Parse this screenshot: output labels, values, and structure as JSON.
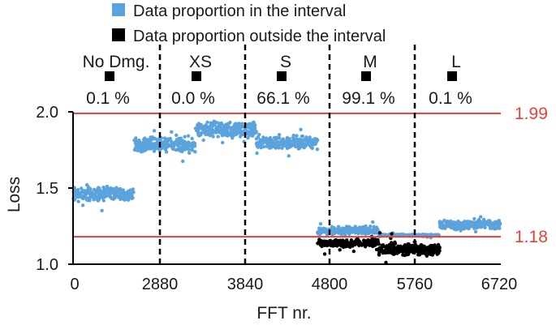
{
  "chart_data": {
    "type": "scatter",
    "title": "",
    "xlabel": "FFT nr.",
    "ylabel": "Loss",
    "xlim": [
      0,
      6720
    ],
    "ylim": [
      1.0,
      2.0
    ],
    "xticks": [
      0,
      2880,
      3840,
      4800,
      5760,
      6720
    ],
    "yticks": [
      1.0,
      1.5,
      2.0
    ],
    "legend": {
      "placement": "top-center",
      "entries": [
        {
          "name": "Data proportion in the interval",
          "color": "#5ba3dc"
        },
        {
          "name": "Data proportion outside the interval",
          "color": "#000000"
        }
      ]
    },
    "reference_lines": [
      {
        "y": 1.99,
        "label": "1.99",
        "color": "#e8413b"
      },
      {
        "y": 1.18,
        "label": "1.18",
        "color": "#e8413b"
      }
    ],
    "regions": [
      {
        "label": "No Dmg.",
        "x_start": 0,
        "x_end": 2880,
        "percent_outside": "0.1 %"
      },
      {
        "label": "XS",
        "x_start": 2880,
        "x_end": 3840,
        "percent_outside": "0.0 %"
      },
      {
        "label": "S",
        "x_start": 3840,
        "x_end": 4800,
        "percent_outside": "66.1 %"
      },
      {
        "label": "M",
        "x_start": 4800,
        "x_end": 5760,
        "percent_outside": "99.1 %"
      },
      {
        "label": "L",
        "x_start": 5760,
        "x_end": 6720,
        "percent_outside": "0.1 %"
      }
    ],
    "point_clusters": [
      {
        "series": "inside",
        "x_range": [
          0,
          960
        ],
        "y_center": 1.46,
        "y_spread": 0.04
      },
      {
        "series": "inside",
        "x_range": [
          960,
          1920
        ],
        "y_center": 1.78,
        "y_spread": 0.05
      },
      {
        "series": "inside",
        "x_range": [
          1920,
          2880
        ],
        "y_center": 1.88,
        "y_spread": 0.05
      },
      {
        "series": "inside",
        "x_range": [
          2880,
          3840
        ],
        "y_center": 1.8,
        "y_spread": 0.04
      },
      {
        "series": "inside",
        "x_range": [
          3840,
          4800
        ],
        "y_center": 1.22,
        "y_spread": 0.025
      },
      {
        "series": "outside",
        "x_range": [
          3840,
          4800
        ],
        "y_center": 1.14,
        "y_spread": 0.025
      },
      {
        "series": "inside",
        "x_range": [
          4800,
          5760
        ],
        "y_center": 1.19,
        "y_spread": 0.006
      },
      {
        "series": "outside",
        "x_range": [
          4800,
          5760
        ],
        "y_center": 1.1,
        "y_spread": 0.04
      },
      {
        "series": "inside",
        "x_range": [
          5760,
          6720
        ],
        "y_center": 1.26,
        "y_spread": 0.03
      }
    ]
  }
}
